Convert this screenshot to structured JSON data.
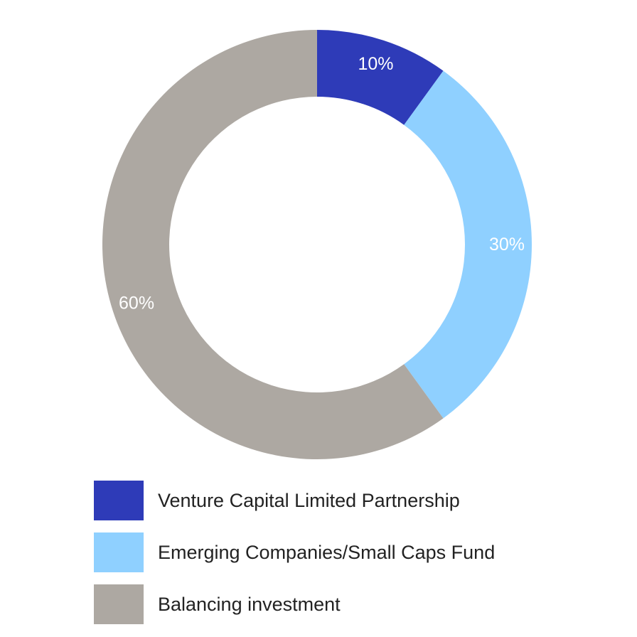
{
  "chart_data": {
    "type": "pie",
    "donut": true,
    "categories": [
      "Venture Capital Limited Partnership",
      "Emerging Companies/Small Caps Fund",
      "Balancing investment"
    ],
    "values": [
      10,
      30,
      60
    ],
    "data_labels": [
      "10%",
      "30%",
      "60%"
    ],
    "colors": [
      "#2e3bb8",
      "#8fd0ff",
      "#ada8a2"
    ],
    "legend_placement": "bottom"
  },
  "legend": [
    {
      "label": "Venture Capital Limited Partnership",
      "color": "#2e3bb8"
    },
    {
      "label": "Emerging Companies/Small Caps Fund",
      "color": "#8fd0ff"
    },
    {
      "label": "Balancing investment",
      "color": "#ada8a2"
    }
  ]
}
